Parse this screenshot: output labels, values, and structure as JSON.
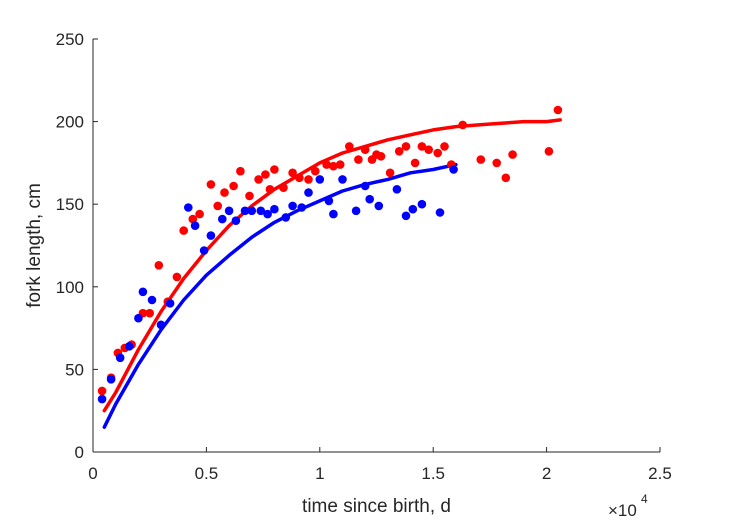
{
  "chart_data": {
    "type": "scatter",
    "xlabel": "time since birth, d",
    "ylabel": "fork length, cm",
    "xlim": [
      0,
      25000
    ],
    "ylim": [
      0,
      250
    ],
    "x_ticks": [
      0,
      5000,
      10000,
      15000,
      20000,
      25000
    ],
    "x_tick_labels": [
      "0",
      "0.5",
      "1",
      "1.5",
      "2",
      "2.5"
    ],
    "y_ticks": [
      0,
      50,
      100,
      150,
      200,
      250
    ],
    "y_tick_labels": [
      "0",
      "50",
      "100",
      "150",
      "200",
      "250"
    ],
    "x_exponent_base": "×10",
    "x_exponent_power": "4",
    "grid": false,
    "series": [
      {
        "color": "#ff0000",
        "marker": "circle",
        "points": [
          [
            400,
            37
          ],
          [
            800,
            45
          ],
          [
            1100,
            60
          ],
          [
            1400,
            63
          ],
          [
            1700,
            65
          ],
          [
            2200,
            84
          ],
          [
            2500,
            84
          ],
          [
            2900,
            113
          ],
          [
            3300,
            91
          ],
          [
            3700,
            106
          ],
          [
            4000,
            134
          ],
          [
            4400,
            141
          ],
          [
            4700,
            144
          ],
          [
            5200,
            162
          ],
          [
            5500,
            149
          ],
          [
            5800,
            157
          ],
          [
            6200,
            161
          ],
          [
            6500,
            170
          ],
          [
            6900,
            155
          ],
          [
            7300,
            165
          ],
          [
            7600,
            168
          ],
          [
            7800,
            159
          ],
          [
            8000,
            171
          ],
          [
            8400,
            160
          ],
          [
            8800,
            169
          ],
          [
            9100,
            166
          ],
          [
            9500,
            165
          ],
          [
            9800,
            170
          ],
          [
            10300,
            174
          ],
          [
            10600,
            173
          ],
          [
            10900,
            174
          ],
          [
            11300,
            185
          ],
          [
            11700,
            177
          ],
          [
            12000,
            183
          ],
          [
            12300,
            177
          ],
          [
            12500,
            180
          ],
          [
            12700,
            179
          ],
          [
            13100,
            169
          ],
          [
            13500,
            182
          ],
          [
            13800,
            185
          ],
          [
            14200,
            175
          ],
          [
            14500,
            185
          ],
          [
            14800,
            183
          ],
          [
            15200,
            181
          ],
          [
            15500,
            185
          ],
          [
            15800,
            174
          ],
          [
            16300,
            198
          ],
          [
            17100,
            177
          ],
          [
            17800,
            175
          ],
          [
            18200,
            166
          ],
          [
            18500,
            180
          ],
          [
            20100,
            182
          ],
          [
            20500,
            207
          ]
        ]
      },
      {
        "color": "#0000ff",
        "marker": "circle",
        "points": [
          [
            400,
            32
          ],
          [
            800,
            44
          ],
          [
            1200,
            57
          ],
          [
            1600,
            64
          ],
          [
            2000,
            81
          ],
          [
            2200,
            97
          ],
          [
            2600,
            92
          ],
          [
            3000,
            77
          ],
          [
            3400,
            90
          ],
          [
            4200,
            148
          ],
          [
            4500,
            137
          ],
          [
            4900,
            122
          ],
          [
            5200,
            131
          ],
          [
            5700,
            141
          ],
          [
            6000,
            146
          ],
          [
            6300,
            140
          ],
          [
            6700,
            146
          ],
          [
            7000,
            146
          ],
          [
            7400,
            146
          ],
          [
            7700,
            144
          ],
          [
            8000,
            147
          ],
          [
            8500,
            142
          ],
          [
            8800,
            149
          ],
          [
            9200,
            148
          ],
          [
            9500,
            157
          ],
          [
            10000,
            165
          ],
          [
            10400,
            152
          ],
          [
            10600,
            144
          ],
          [
            11000,
            165
          ],
          [
            11600,
            146
          ],
          [
            12000,
            161
          ],
          [
            12200,
            153
          ],
          [
            12600,
            149
          ],
          [
            13400,
            159
          ],
          [
            13800,
            143
          ],
          [
            14100,
            147
          ],
          [
            14500,
            150
          ],
          [
            15300,
            145
          ],
          [
            15900,
            171
          ]
        ]
      }
    ],
    "fits": [
      {
        "color": "#ff0000",
        "x": [
          500,
          1000,
          2000,
          3000,
          4000,
          5000,
          6000,
          7000,
          8000,
          9000,
          10000,
          11000,
          12000,
          13000,
          14000,
          15000,
          16000,
          17000,
          18000,
          19000,
          20000,
          20600
        ],
        "y": [
          25,
          36,
          62,
          85,
          105,
          122,
          137,
          149,
          159,
          167,
          175,
          181,
          185,
          189,
          192,
          195,
          197,
          198,
          199,
          200,
          200,
          201
        ]
      },
      {
        "color": "#0000ff",
        "x": [
          500,
          1000,
          2000,
          3000,
          4000,
          5000,
          6000,
          7000,
          8000,
          9000,
          10000,
          11000,
          12000,
          13000,
          14000,
          15000,
          16000
        ],
        "y": [
          15,
          29,
          53,
          74,
          92,
          107,
          119,
          130,
          139,
          146,
          152,
          158,
          162,
          165,
          169,
          171,
          174
        ]
      }
    ]
  }
}
